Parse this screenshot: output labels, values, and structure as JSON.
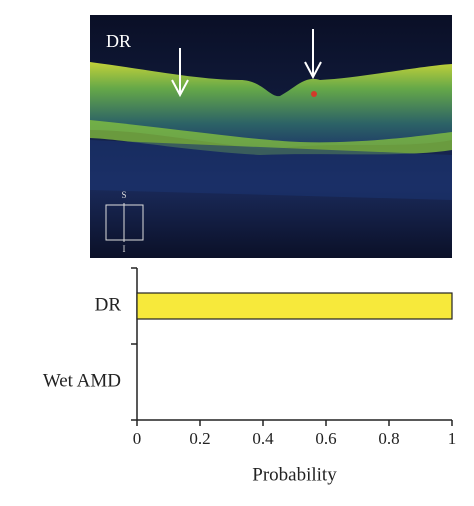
{
  "image": {
    "label": "DR",
    "orientation_top": "S",
    "orientation_bottom": "I"
  },
  "chart_data": {
    "type": "hbar",
    "categories": [
      "DR",
      "Wet AMD"
    ],
    "values": [
      1,
      0
    ],
    "color": "#f7e93b",
    "xlim": [
      0,
      1
    ],
    "xticks": [
      0,
      0.2,
      0.4,
      0.6,
      0.8,
      1
    ],
    "xlabel": "Probability"
  }
}
